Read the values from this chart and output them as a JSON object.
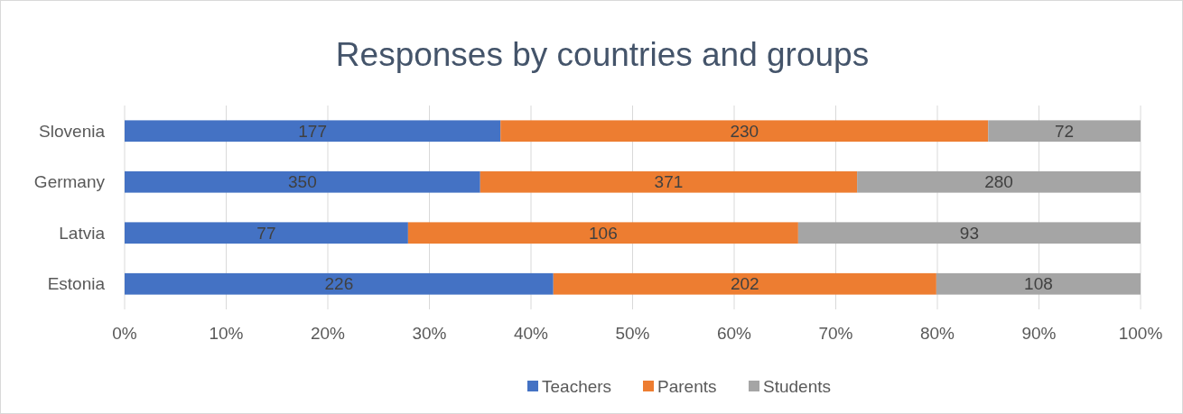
{
  "chart_data": {
    "type": "bar",
    "title": "Responses by countries and groups",
    "orientation": "horizontal",
    "stacked": true,
    "categories": [
      "Slovenia",
      "Germany",
      "Latvia",
      "Estonia"
    ],
    "series": [
      {
        "name": "Teachers",
        "color": "#4472c4",
        "values": [
          37.0,
          35.0,
          27.9,
          42.2
        ]
      },
      {
        "name": "Parents",
        "color": "#ed7d31",
        "values": [
          48.0,
          37.1,
          38.4,
          37.7
        ]
      },
      {
        "name": "Students",
        "color": "#a5a5a5",
        "values": [
          15.0,
          27.9,
          33.7,
          20.1
        ]
      }
    ],
    "annotations": [
      "177",
      "230",
      "72",
      "350",
      "371",
      "280",
      "77",
      "106",
      "93",
      "226",
      "202",
      "108"
    ],
    "xlim": [
      0,
      100
    ],
    "xticks": [
      {
        "value": 0,
        "label": "0%"
      },
      {
        "value": 10,
        "label": "10%"
      },
      {
        "value": 20,
        "label": "20%"
      },
      {
        "value": 30,
        "label": "30%"
      },
      {
        "value": 40,
        "label": "40%"
      },
      {
        "value": 50,
        "label": "50%"
      },
      {
        "value": 60,
        "label": "60%"
      },
      {
        "value": 70,
        "label": "70%"
      },
      {
        "value": 80,
        "label": "80%"
      },
      {
        "value": 90,
        "label": "90%"
      },
      {
        "value": 100,
        "label": "100%"
      }
    ],
    "grid": "x",
    "legend": "bottom"
  }
}
